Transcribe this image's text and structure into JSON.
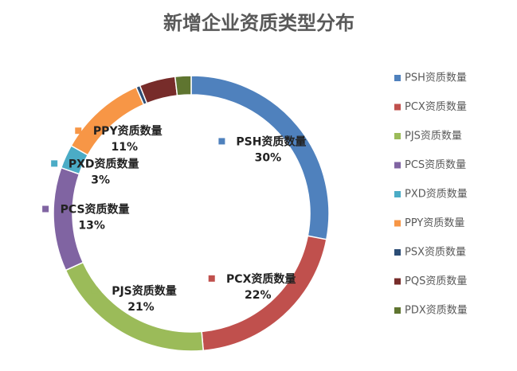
{
  "chart_data": {
    "type": "donut",
    "title": "新增企业资质类型分布",
    "categories": [
      "PSH资质数量",
      "PCX资质数量",
      "PJS资质数量",
      "PCS资质数量",
      "PXD资质数量",
      "PPY资质数量",
      "PSX资质数量",
      "PQS资质数量",
      "PDX资质数量"
    ],
    "values": [
      30,
      22,
      21,
      13,
      3,
      11,
      0.5,
      4.5,
      2
    ],
    "value_labels": [
      "30%",
      "22%",
      "21%",
      "13%",
      "3%",
      "11%",
      null,
      null,
      null
    ],
    "colors": [
      "#4f81bd",
      "#c0504d",
      "#9bbb59",
      "#8064a2",
      "#4bacc6",
      "#f79646",
      "#2c4d75",
      "#772c2a",
      "#5f7530"
    ],
    "legend": "right"
  }
}
